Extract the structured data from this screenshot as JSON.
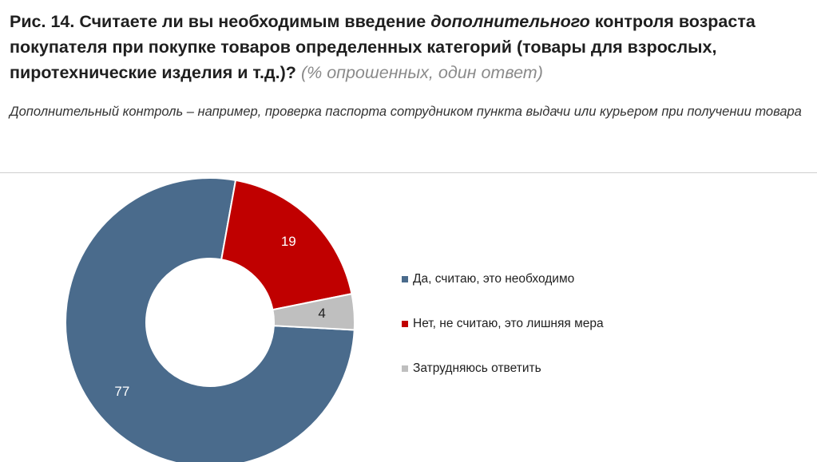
{
  "title": {
    "part1": "Рис. 14. Считаете ли вы необходимым введение ",
    "emphasis": "дополнительного",
    "part2": " контроля возраста покупателя при покупке товаров определенных категорий (товары для взрослых, пиротехнические изделия и т.д.)?",
    "note": "(% опрошенных, один ответ)"
  },
  "subtitle": "Дополнительный контроль – например, проверка паспорта сотрудником пункта выдачи или курьером при получении товара",
  "chart_data": {
    "type": "pie",
    "variant": "donut",
    "categories": [
      "Да, считаю, это необходимо",
      "Нет, не считаю, это лишняя мера",
      "Затрудняюсь ответить"
    ],
    "values": [
      77,
      19,
      4
    ],
    "colors": [
      "#4a6b8c",
      "#c00000",
      "#bfbfbf"
    ],
    "label_colors": [
      "#ffffff",
      "#ffffff",
      "#1f1f1f"
    ],
    "legend_position": "right"
  }
}
